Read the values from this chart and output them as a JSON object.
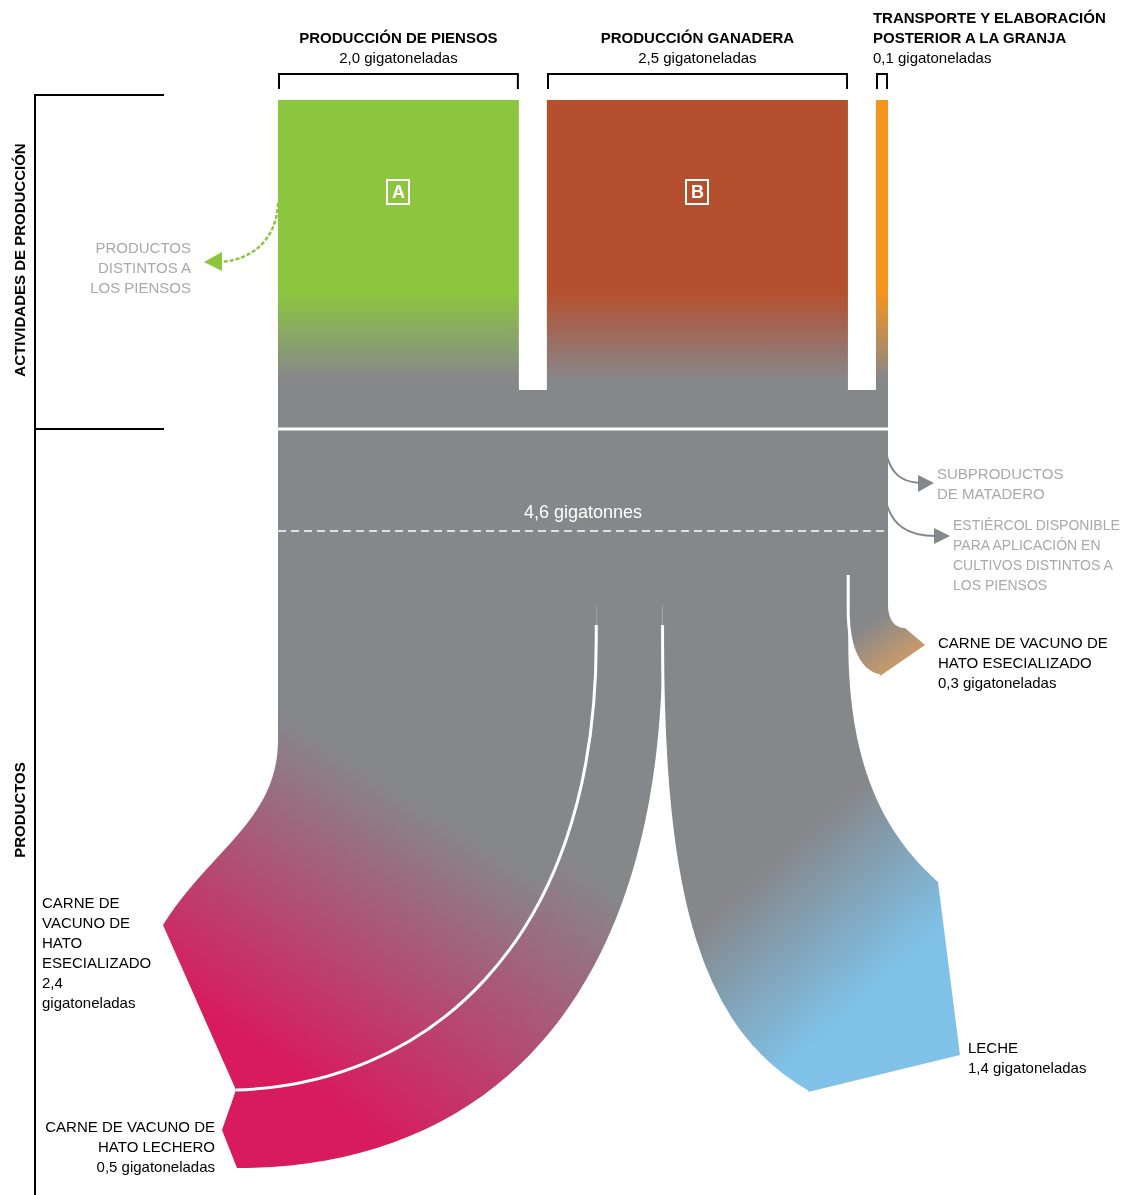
{
  "chart_data": {
    "type": "other",
    "categories": [
      "PRODUCCIÓN DE PIENSOS",
      "PRODUCCIÓN GANADERA",
      "TRANSPORTE Y ELABORACIÓN POSTERIOR A LA GRANJA",
      "CARNE DE VACUNO DE HATO ESECIALIZADO",
      "CARNE DE VACUNO DE HATO LECHERO",
      "CARNE DE VACUNO DE HATO ESECIALIZADO",
      "LECHE"
    ],
    "values": [
      2.0,
      2.5,
      0.1,
      2.4,
      0.5,
      0.3,
      1.4
    ],
    "value_labels": [
      "2,0 gigatoneladas",
      "2,5 gigatoneladas",
      "0,1 gigatoneladas",
      "2,4 gigatoneladas",
      "0,5 gigatoneladas",
      "0,3 gigatoneladas",
      "1,4 gigatoneladas"
    ],
    "colors": [
      "#8cc63f",
      "#b5502f",
      "#f7941d",
      "#d81b5c",
      "#d81b5c",
      "#c4996b",
      "#7fc1e7"
    ],
    "annotations": [
      "ACTIVIDADES DE PRODUCCIÓN",
      "PRODUCTOS",
      "PRODUCTOS DISTINTOS A LOS PIENSOS",
      "SUBPRODUCTOS DE MATADERO",
      "ESTIÉRCOL DISPONIBLE PARA APLICACIÓN EN CULTIVOS DISTINTOS A LOS PIENSOS",
      "4,6 gigatonnes",
      "A",
      "B"
    ]
  }
}
